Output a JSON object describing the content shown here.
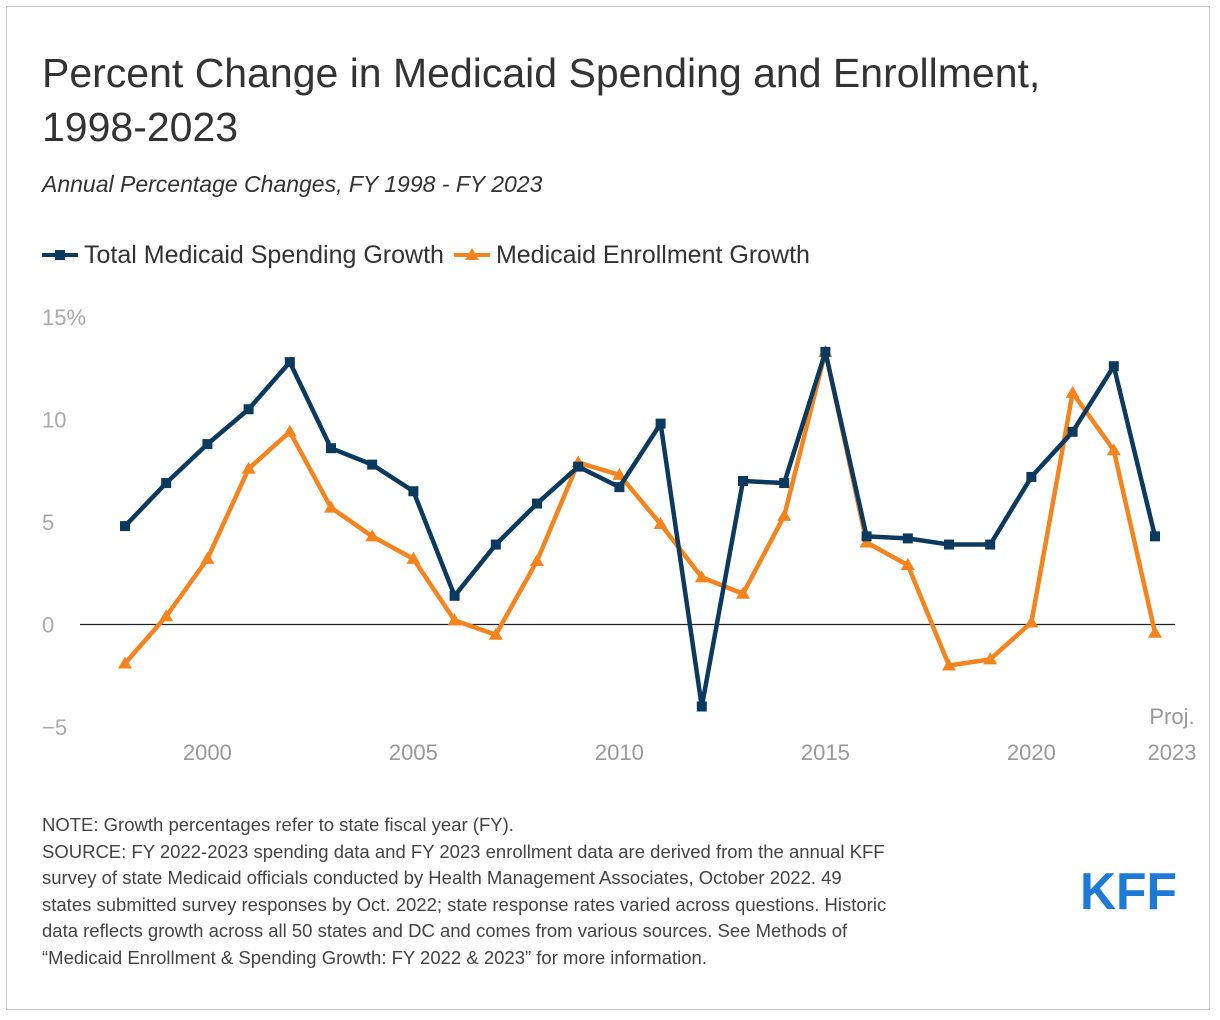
{
  "chart_data": {
    "type": "line",
    "title": "Percent Change in Medicaid Spending and Enrollment, 1998-2023",
    "subtitle": "Annual Percentage Changes, FY 1998 - FY 2023",
    "x": [
      1998,
      1999,
      2000,
      2001,
      2002,
      2003,
      2004,
      2005,
      2006,
      2007,
      2008,
      2009,
      2010,
      2011,
      2012,
      2013,
      2014,
      2015,
      2016,
      2017,
      2018,
      2019,
      2020,
      2021,
      2022,
      2023
    ],
    "x_ticks": [
      {
        "value": 2000,
        "label": "2000"
      },
      {
        "value": 2005,
        "label": "2005"
      },
      {
        "value": 2010,
        "label": "2010"
      },
      {
        "value": 2015,
        "label": "2015"
      },
      {
        "value": 2020,
        "label": "2020"
      }
    ],
    "x_end_label": [
      "Proj.",
      "2023"
    ],
    "y_ticks": [
      {
        "value": 15,
        "label": "15%"
      },
      {
        "value": 10,
        "label": "10"
      },
      {
        "value": 5,
        "label": "5"
      },
      {
        "value": 0,
        "label": "0"
      },
      {
        "value": -5,
        "label": "−5"
      }
    ],
    "ylim": [
      -5,
      15
    ],
    "xlim": [
      1998,
      2023
    ],
    "series": [
      {
        "name": "Total Medicaid Spending Growth",
        "color": "#0b3a5e",
        "marker": "square",
        "values": [
          4.8,
          6.9,
          8.8,
          10.5,
          12.8,
          8.6,
          7.8,
          6.5,
          1.4,
          3.9,
          5.9,
          7.7,
          6.7,
          9.8,
          -4.0,
          7.0,
          6.9,
          13.3,
          4.3,
          4.2,
          3.9,
          3.9,
          7.2,
          9.4,
          12.6,
          4.3
        ]
      },
      {
        "name": "Medicaid Enrollment Growth",
        "color": "#f5841f",
        "marker": "triangle",
        "values": [
          -1.9,
          0.4,
          3.2,
          7.6,
          9.4,
          5.7,
          4.3,
          3.2,
          0.2,
          -0.5,
          3.1,
          7.9,
          7.3,
          4.9,
          2.3,
          1.5,
          5.3,
          13.3,
          4.0,
          2.9,
          -2.0,
          -1.7,
          0.1,
          11.3,
          8.5,
          -0.4
        ]
      }
    ]
  },
  "notes": {
    "note": "NOTE: Growth percentages refer to state fiscal year (FY).",
    "source_lines": [
      "SOURCE: FY 2022-2023 spending data and FY 2023 enrollment data are derived from the annual KFF",
      "survey of state Medicaid officials conducted by Health Management Associates, October 2022. 49",
      "states submitted survey responses by Oct. 2022; state response rates varied across questions. Historic",
      "data reflects growth across all 50 states and DC and comes from various sources. See Methods of",
      "“Medicaid Enrollment & Spending Growth: FY 2022 & 2023” for more information."
    ]
  },
  "logo": {
    "text": "KFF",
    "color": "#1f7ad6"
  }
}
